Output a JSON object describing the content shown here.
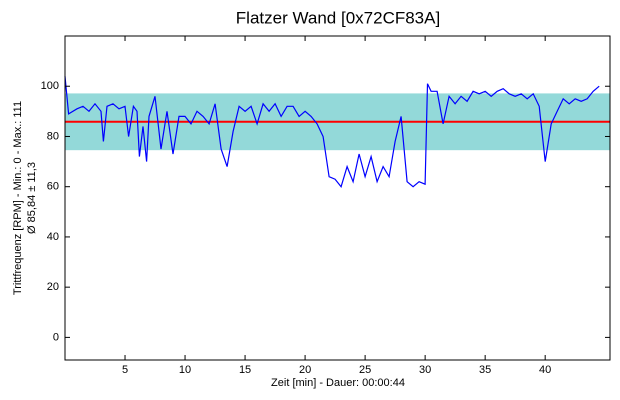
{
  "chart_data": {
    "type": "line",
    "title": "Flatzer Wand [0x72CF83A]",
    "x_label": "Zeit [min] - Dauer: 00:00:44",
    "y_label": "Trittfrequenz [RPM] - Min.: 0 - Max.: 111",
    "y_label2": "Ø 85,84 ± 11,3",
    "x": [
      0,
      0.3,
      1,
      1.5,
      2,
      2.5,
      3,
      3.2,
      3.5,
      4,
      4.5,
      5,
      5.3,
      5.7,
      6,
      6.2,
      6.5,
      6.8,
      7,
      7.5,
      8,
      8.5,
      9,
      9.5,
      10,
      10.5,
      11,
      11.5,
      12,
      12.5,
      13,
      13.5,
      14,
      14.5,
      15,
      15.5,
      16,
      16.5,
      17,
      17.5,
      18,
      18.5,
      19,
      19.5,
      20,
      20.5,
      21,
      21.5,
      22,
      22.5,
      23,
      23.5,
      24,
      24.5,
      25,
      25.5,
      26,
      26.5,
      27,
      27.5,
      28,
      28.5,
      29,
      29.5,
      30,
      30.2,
      30.5,
      31,
      31.5,
      32,
      32.5,
      33,
      33.5,
      34,
      34.5,
      35,
      35.5,
      36,
      36.5,
      37,
      37.5,
      38,
      38.5,
      39,
      39.5,
      40,
      40.5,
      41,
      41.5,
      42,
      42.5,
      43,
      43.5,
      44,
      44.5
    ],
    "series": [
      {
        "name": "Trittfrequenz",
        "color": "#0000ff",
        "values": [
          104,
          89,
          91,
          92,
          90,
          93,
          90,
          78,
          92,
          93,
          91,
          92,
          80,
          92,
          90,
          72,
          84,
          70,
          88,
          96,
          75,
          90,
          73,
          88,
          88,
          85,
          90,
          88,
          85,
          93,
          75,
          68,
          82,
          92,
          90,
          92,
          85,
          93,
          90,
          93,
          88,
          92,
          92,
          88,
          90,
          88,
          85,
          80,
          64,
          63,
          60,
          68,
          62,
          73,
          64,
          72,
          62,
          68,
          64,
          78,
          88,
          62,
          60,
          62,
          61,
          101,
          98,
          98,
          85,
          96,
          93,
          96,
          94,
          98,
          97,
          98,
          96,
          98,
          99,
          97,
          96,
          97,
          95,
          97,
          92,
          70,
          85,
          90,
          95,
          93,
          95,
          94,
          95,
          98,
          100
        ]
      }
    ],
    "mean_line": {
      "value": 85.84,
      "color": "#ff0000"
    },
    "band": {
      "center": 85.84,
      "halfwidth": 11.3,
      "color": "#93d9d9"
    },
    "xlim": [
      0,
      45.4
    ],
    "xticks": [
      5,
      10,
      15,
      20,
      25,
      30,
      35,
      40
    ],
    "ylim": [
      -9,
      120
    ],
    "yticks": [
      0,
      20,
      40,
      60,
      80,
      100
    ]
  }
}
